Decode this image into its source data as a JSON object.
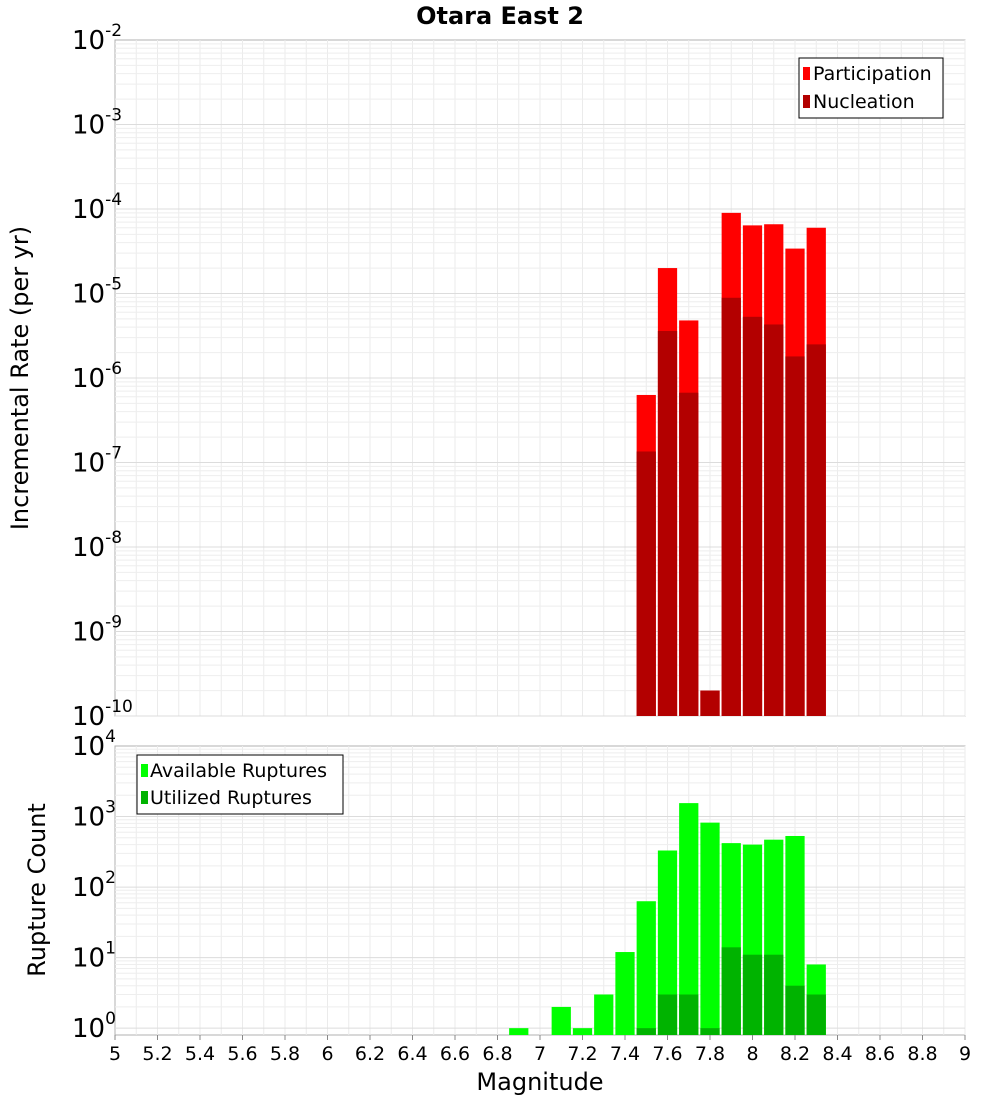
{
  "chart_data": [
    {
      "type": "bar",
      "title": "Otara East 2",
      "xlabel": "",
      "ylabel": "Incremental Rate (per yr)",
      "xlim": [
        5,
        9
      ],
      "ylim": [
        1e-10,
        0.01
      ],
      "yscale": "log",
      "grid": true,
      "legend_position": "top-right",
      "x": [
        7.5,
        7.6,
        7.7,
        7.8,
        7.9,
        8.0,
        8.1,
        8.2,
        8.3
      ],
      "series": [
        {
          "name": "Participation",
          "color": "#ff0000",
          "values": [
            6.3e-07,
            2e-05,
            4.8e-06,
            2e-10,
            9e-05,
            6.4e-05,
            6.6e-05,
            3.4e-05,
            6e-05
          ]
        },
        {
          "name": "Nucleation",
          "color": "#b30000",
          "values": [
            1.35e-07,
            3.6e-06,
            6.7e-07,
            2e-10,
            8.9e-06,
            5.3e-06,
            4.3e-06,
            1.8e-06,
            2.5e-06
          ]
        }
      ]
    },
    {
      "type": "bar",
      "title": "",
      "xlabel": "Magnitude",
      "ylabel": "Rupture Count",
      "xlim": [
        5,
        9
      ],
      "ylim": [
        0.8,
        10000
      ],
      "yscale": "log",
      "grid": true,
      "legend_position": "top-left",
      "x": [
        6.9,
        7.0,
        7.1,
        7.2,
        7.3,
        7.4,
        7.5,
        7.6,
        7.7,
        7.8,
        7.9,
        8.0,
        8.1,
        8.2,
        8.3
      ],
      "series": [
        {
          "name": "Available Ruptures",
          "color": "#00ff00",
          "values": [
            1,
            0,
            2,
            1,
            3,
            12,
            63,
            330,
            1550,
            820,
            420,
            400,
            470,
            530,
            8
          ]
        },
        {
          "name": "Utilized Ruptures",
          "color": "#00b300",
          "values": [
            0,
            0,
            0,
            0,
            0,
            0,
            1,
            3,
            3,
            1,
            14,
            11,
            11,
            4,
            3
          ]
        }
      ]
    }
  ],
  "top_axis_ticks": [
    {
      "base": "10",
      "exp": "-2",
      "value": 0.01
    },
    {
      "base": "10",
      "exp": "-3",
      "value": 0.001
    },
    {
      "base": "10",
      "exp": "-4",
      "value": 0.0001
    },
    {
      "base": "10",
      "exp": "-5",
      "value": 1e-05
    },
    {
      "base": "10",
      "exp": "-6",
      "value": 1e-06
    },
    {
      "base": "10",
      "exp": "-7",
      "value": 1e-07
    },
    {
      "base": "10",
      "exp": "-8",
      "value": 1e-08
    },
    {
      "base": "10",
      "exp": "-9",
      "value": 1e-09
    },
    {
      "base": "10",
      "exp": "-10",
      "value": 1e-10
    }
  ],
  "bottom_axis_ticks": [
    {
      "base": "10",
      "exp": "4",
      "value": 10000
    },
    {
      "base": "10",
      "exp": "3",
      "value": 1000
    },
    {
      "base": "10",
      "exp": "2",
      "value": 100
    },
    {
      "base": "10",
      "exp": "1",
      "value": 10
    },
    {
      "base": "10",
      "exp": "0",
      "value": 1
    }
  ],
  "x_ticks": [
    "5",
    "5.2",
    "5.4",
    "5.6",
    "5.8",
    "6",
    "6.2",
    "6.4",
    "6.6",
    "6.8",
    "7",
    "7.2",
    "7.4",
    "7.6",
    "7.8",
    "8",
    "8.2",
    "8.4",
    "8.6",
    "8.8",
    "9"
  ]
}
